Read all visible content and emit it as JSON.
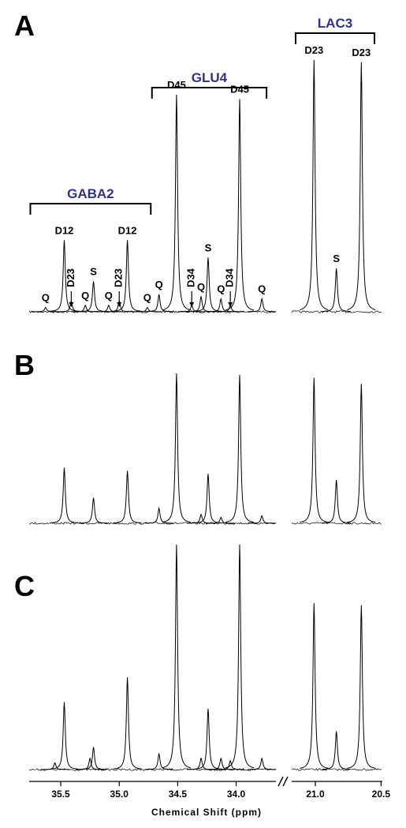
{
  "chart_data": {
    "type": "spectrum",
    "x_label": "Chemical Shift (ppm)",
    "xlim": [
      35.77,
      33.66
    ],
    "x2lim": [
      21.18,
      20.49
    ],
    "xticks": [
      35.5,
      {
        "value": 35.0,
        "label": "35.0"
      },
      34.5,
      {
        "value": 34.0,
        "label": "34.0"
      }
    ],
    "x2ticks": [
      {
        "value": 21.0,
        "label": "21.0"
      },
      20.5
    ],
    "color": "#000000",
    "panels": [
      {
        "label": "A",
        "peaks": {
          "x": [
            35.63,
            35.47,
            35.41,
            35.29,
            35.22,
            35.09,
            35.0,
            34.93,
            34.76,
            34.66,
            34.51,
            34.38,
            34.3,
            34.24,
            34.13,
            34.05,
            33.97,
            33.78,
            21.01,
            20.84,
            20.65
          ],
          "values": [
            2,
            33,
            5,
            3,
            14,
            3,
            5,
            33,
            2,
            8,
            100,
            3,
            7,
            25,
            6,
            3,
            98,
            6,
            116,
            20,
            115
          ],
          "labels": [
            "Q",
            "D12",
            "D23",
            "Q",
            "S",
            "Q",
            "D23",
            "D12",
            "Q",
            "Q",
            "D45",
            "D34",
            "Q",
            "S",
            "Q",
            "D34",
            "D45",
            "Q",
            "D23",
            "S",
            "D23"
          ],
          "arrow": [
            false,
            false,
            true,
            false,
            false,
            false,
            true,
            false,
            false,
            false,
            false,
            true,
            false,
            false,
            false,
            true,
            false,
            false,
            false,
            false,
            false
          ]
        },
        "groups": [
          {
            "label": "GABA2",
            "from": 35.76,
            "to": 34.73
          },
          {
            "label": "GLU4",
            "from": 34.72,
            "to": 33.74
          },
          {
            "label": "LAC3",
            "from": 21.15,
            "to": 20.55
          }
        ]
      },
      {
        "label": "B",
        "peaks": {
          "x": [
            35.47,
            35.22,
            34.93,
            34.66,
            34.51,
            34.3,
            34.24,
            34.13,
            33.97,
            33.78,
            21.01,
            20.84,
            20.65
          ],
          "values": [
            37,
            17,
            35,
            10,
            100,
            6,
            33,
            4,
            99,
            5,
            97,
            29,
            93
          ]
        }
      },
      {
        "label": "C",
        "peaks": {
          "x": [
            35.55,
            35.47,
            35.25,
            35.22,
            34.93,
            34.66,
            34.51,
            34.3,
            34.24,
            34.13,
            34.05,
            33.97,
            33.78,
            21.01,
            20.84,
            20.65
          ],
          "values": [
            3,
            30,
            5,
            10,
            41,
            7,
            100,
            5,
            27,
            5,
            4,
            100,
            5,
            74,
            17,
            73
          ]
        }
      }
    ]
  }
}
